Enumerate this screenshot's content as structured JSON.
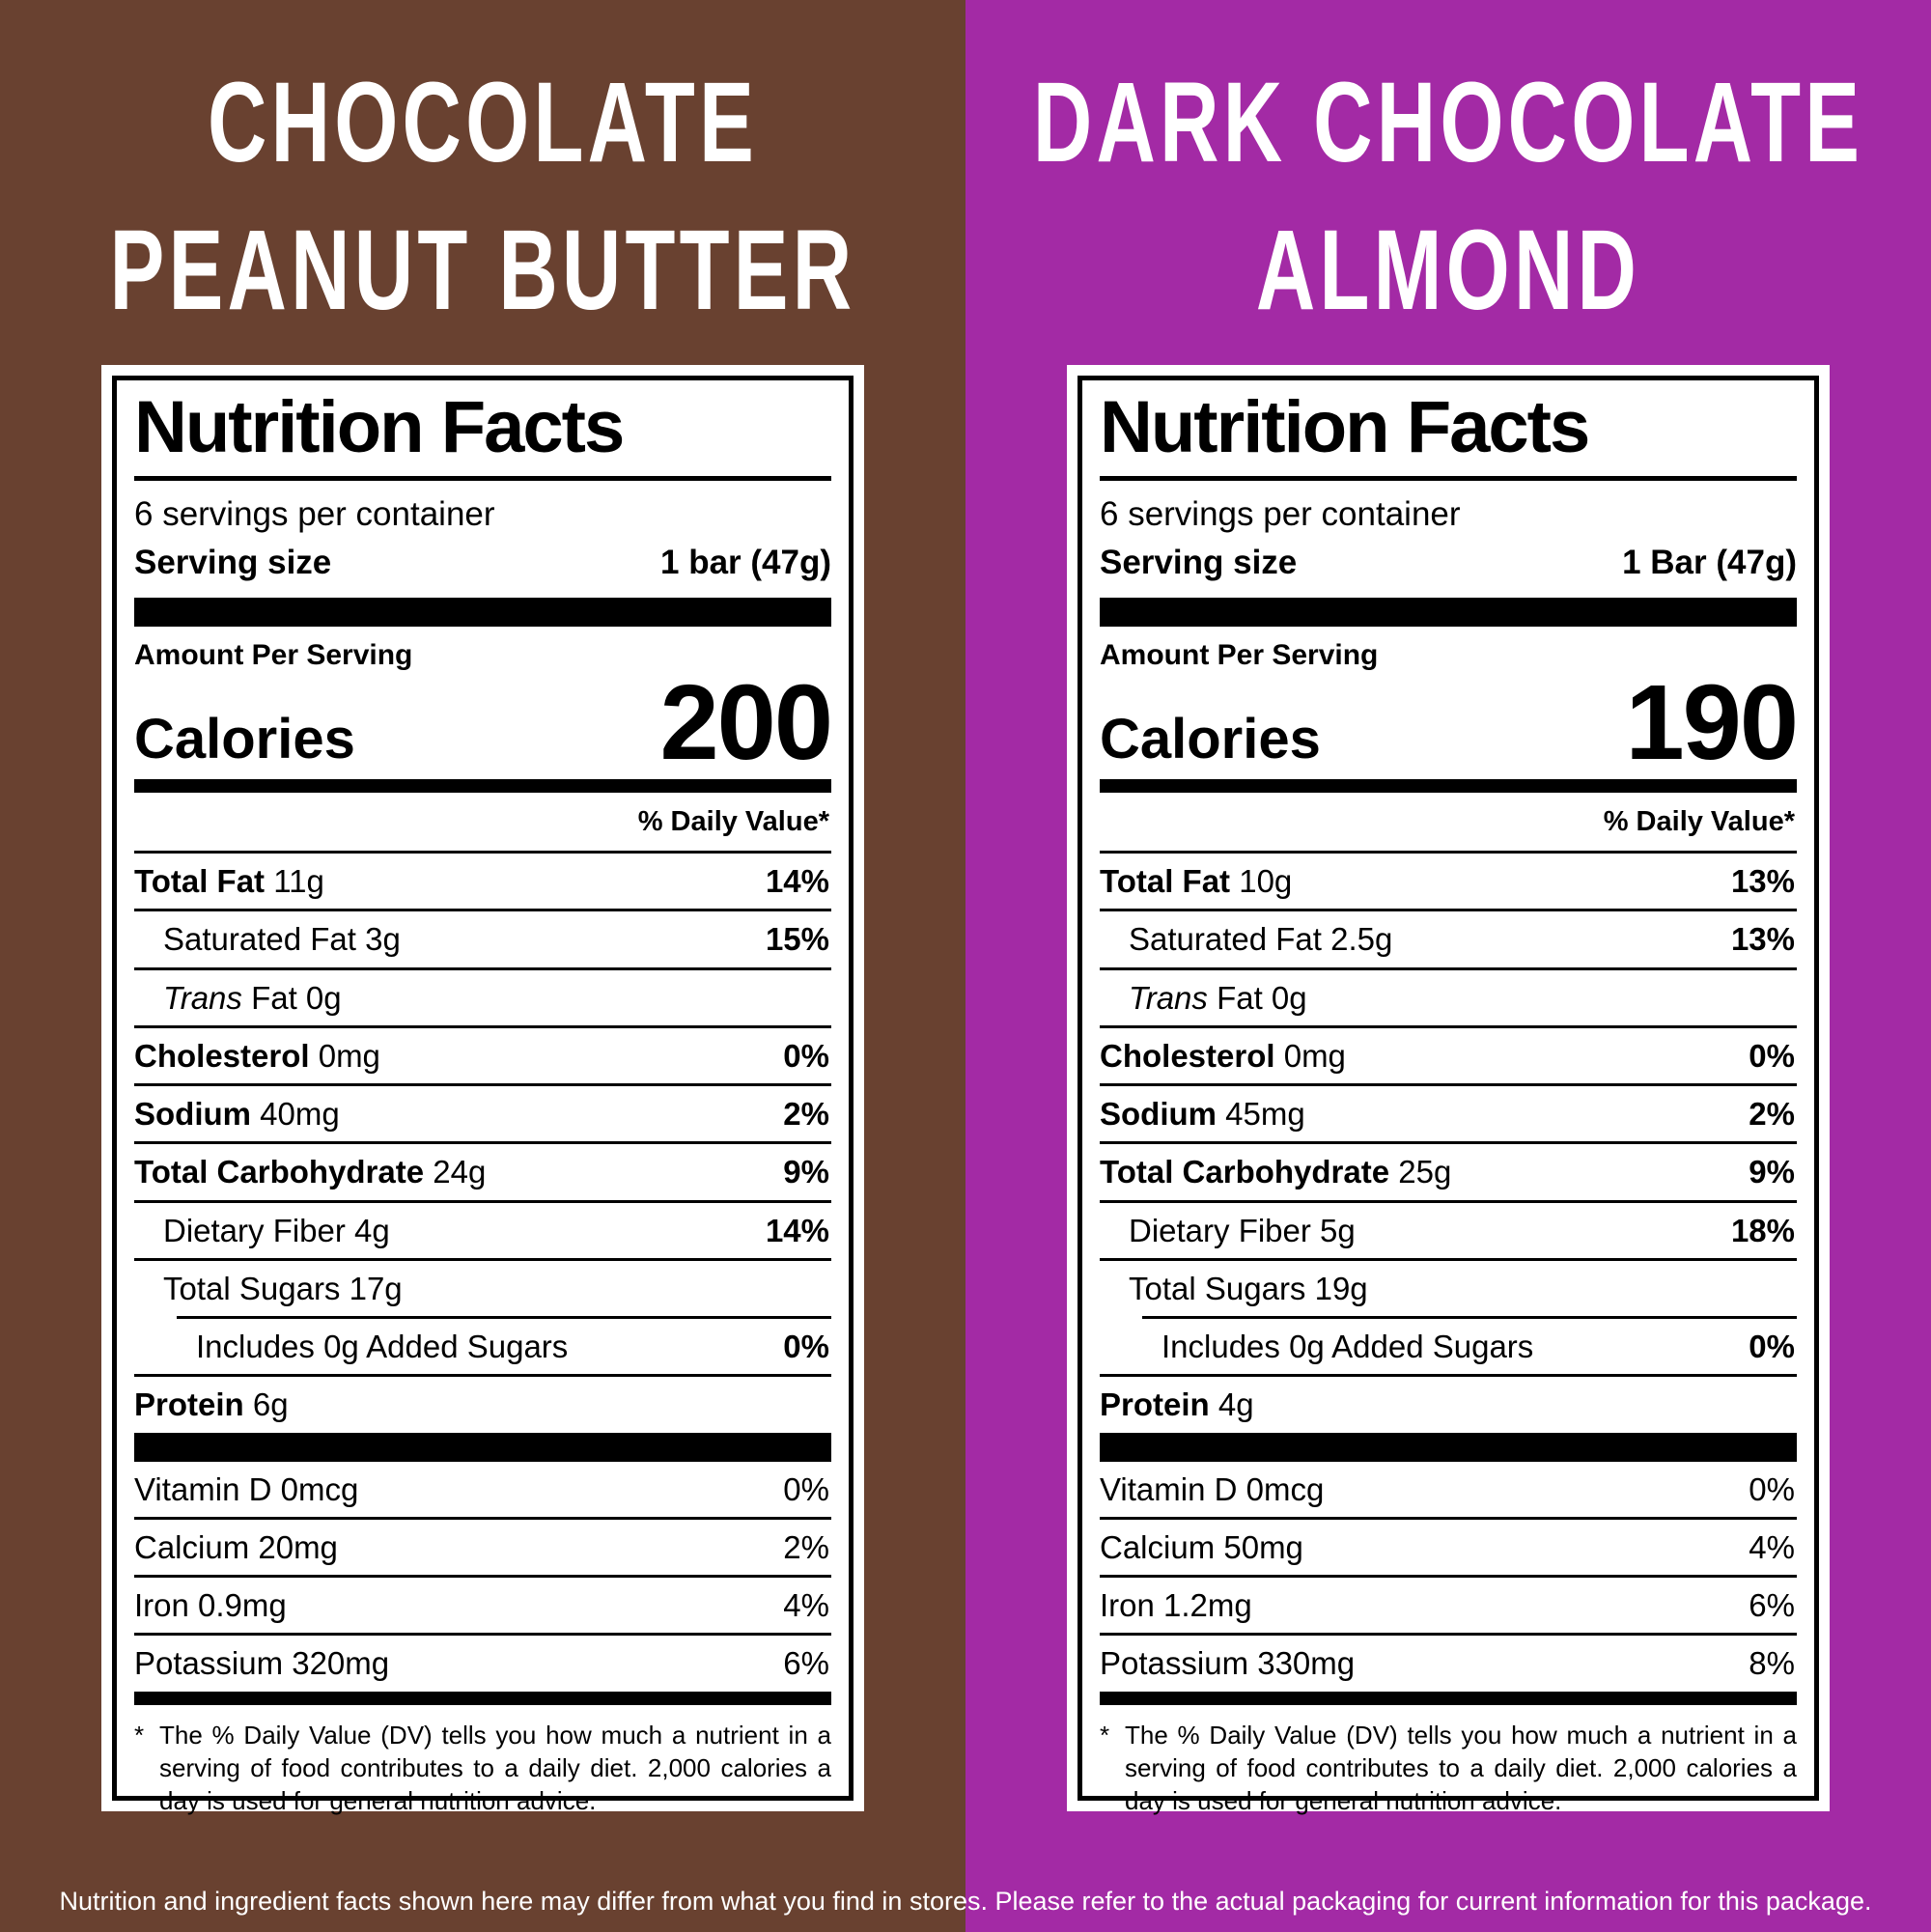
{
  "colors": {
    "left_bg": "#694130",
    "right_bg": "#A32AA5",
    "label_bg": "#FFFFFF",
    "label_text": "#000000",
    "title_text": "#FFFFFF"
  },
  "disclaimer": "Nutrition and ingredient facts shown here may differ from what you find in stores. Please refer to the actual packaging for current information for this package.",
  "panels": [
    {
      "bg": "#694130",
      "title_line1": "CHOCOLATE",
      "title_line2": "PEANUT BUTTER",
      "label": {
        "title": "Nutrition Facts",
        "servings_per_container": "6 servings per container",
        "serving_size_label": "Serving size",
        "serving_size_value": "1 bar (47g)",
        "amount_per_serving": "Amount Per Serving",
        "calories_label": "Calories",
        "calories_value": "200",
        "daily_value_header": "% Daily Value*",
        "rows": [
          {
            "bold": "Total Fat",
            "text": " 11g",
            "dv": "14%",
            "indent": 0,
            "dv_bold": true
          },
          {
            "text": "Saturated Fat 3g",
            "dv": "15%",
            "indent": 1,
            "dv_bold": true
          },
          {
            "italic": "Trans",
            "text": " Fat 0g",
            "dv": "",
            "indent": 1,
            "dv_bold": false
          },
          {
            "bold": "Cholesterol",
            "text": " 0mg",
            "dv": "0%",
            "indent": 0,
            "dv_bold": true
          },
          {
            "bold": "Sodium",
            "text": " 40mg",
            "dv": "2%",
            "indent": 0,
            "dv_bold": true
          },
          {
            "bold": "Total Carbohydrate",
            "text": " 24g",
            "dv": "9%",
            "indent": 0,
            "dv_bold": true
          },
          {
            "text": "Dietary Fiber 4g",
            "dv": "14%",
            "indent": 1,
            "dv_bold": true
          },
          {
            "text": "Total Sugars 17g",
            "dv": "",
            "indent": 1,
            "dv_bold": false
          },
          {
            "text": "Includes 0g Added Sugars",
            "dv": "0%",
            "indent": 2,
            "dv_bold": true,
            "rule_indent": true
          },
          {
            "bold": "Protein",
            "text": " 6g",
            "dv": "",
            "indent": 0,
            "dv_bold": false
          }
        ],
        "vitamins": [
          {
            "text": "Vitamin D 0mcg",
            "dv": "0%",
            "indent": 0,
            "dv_bold": false
          },
          {
            "text": "Calcium 20mg",
            "dv": "2%",
            "indent": 0,
            "dv_bold": false
          },
          {
            "text": "Iron 0.9mg",
            "dv": "4%",
            "indent": 0,
            "dv_bold": false
          },
          {
            "text": "Potassium 320mg",
            "dv": "6%",
            "indent": 0,
            "dv_bold": false
          }
        ],
        "footnote_marker": "*",
        "footnote": "The % Daily Value (DV) tells you how much a nutrient in a serving of food contributes to a daily diet. 2,000 calories a day is used for general nutrition advice."
      }
    },
    {
      "bg": "#A32AA5",
      "title_line1": "DARK CHOCOLATE",
      "title_line2": "ALMOND",
      "label": {
        "title": "Nutrition Facts",
        "servings_per_container": "6 servings per container",
        "serving_size_label": "Serving size",
        "serving_size_value": "1 Bar (47g)",
        "amount_per_serving": "Amount Per Serving",
        "calories_label": "Calories",
        "calories_value": "190",
        "daily_value_header": "% Daily Value*",
        "rows": [
          {
            "bold": "Total Fat",
            "text": " 10g",
            "dv": "13%",
            "indent": 0,
            "dv_bold": true
          },
          {
            "text": "Saturated Fat 2.5g",
            "dv": "13%",
            "indent": 1,
            "dv_bold": true
          },
          {
            "italic": "Trans",
            "text": " Fat 0g",
            "dv": "",
            "indent": 1,
            "dv_bold": false
          },
          {
            "bold": "Cholesterol",
            "text": " 0mg",
            "dv": "0%",
            "indent": 0,
            "dv_bold": true
          },
          {
            "bold": "Sodium",
            "text": " 45mg",
            "dv": "2%",
            "indent": 0,
            "dv_bold": true
          },
          {
            "bold": "Total Carbohydrate",
            "text": " 25g",
            "dv": "9%",
            "indent": 0,
            "dv_bold": true
          },
          {
            "text": "Dietary Fiber 5g",
            "dv": "18%",
            "indent": 1,
            "dv_bold": true
          },
          {
            "text": "Total Sugars 19g",
            "dv": "",
            "indent": 1,
            "dv_bold": false
          },
          {
            "text": "Includes 0g Added Sugars",
            "dv": "0%",
            "indent": 2,
            "dv_bold": true,
            "rule_indent": true
          },
          {
            "bold": "Protein",
            "text": " 4g",
            "dv": "",
            "indent": 0,
            "dv_bold": false
          }
        ],
        "vitamins": [
          {
            "text": "Vitamin D 0mcg",
            "dv": "0%",
            "indent": 0,
            "dv_bold": false
          },
          {
            "text": "Calcium 50mg",
            "dv": "4%",
            "indent": 0,
            "dv_bold": false
          },
          {
            "text": "Iron 1.2mg",
            "dv": "6%",
            "indent": 0,
            "dv_bold": false
          },
          {
            "text": "Potassium 330mg",
            "dv": "8%",
            "indent": 0,
            "dv_bold": false
          }
        ],
        "footnote_marker": "*",
        "footnote": "The % Daily Value (DV) tells you how much a nutrient in a serving of food contributes to a daily diet. 2,000 calories a day is used for general nutrition advice."
      }
    }
  ]
}
